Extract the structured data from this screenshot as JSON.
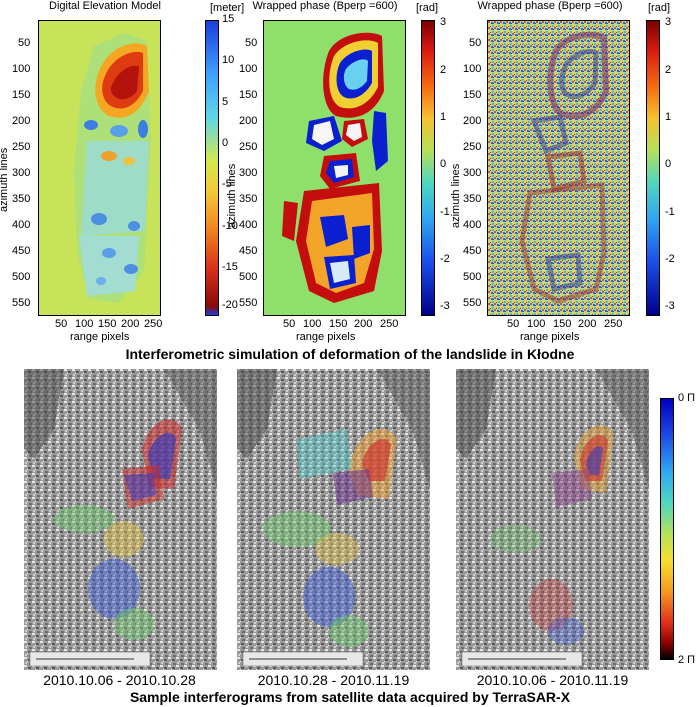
{
  "top_section": {
    "caption": "Interferometric simulation of deformation of the landslide in Kłodne",
    "panels": [
      {
        "title": "Digital Elevation Model",
        "colorbar_unit": "[meter]",
        "colorbar_ticks": [
          "15",
          "10",
          "5",
          "0",
          "-5",
          "-10",
          "-15",
          "-20"
        ],
        "xlabel": "range pixels",
        "ylabel": "azimuth lines",
        "x_ticks": [
          "50",
          "100",
          "150",
          "200",
          "250"
        ],
        "y_ticks": [
          "50",
          "100",
          "150",
          "200",
          "250",
          "300",
          "350",
          "400",
          "450",
          "500",
          "550"
        ],
        "colors": {
          "background": "#c6e35a",
          "high": "#2f6fd8",
          "low": "#b4120c"
        }
      },
      {
        "title": "Wrapped phase (Bperp =600)",
        "colorbar_unit": "[rad]",
        "colorbar_ticks": [
          "3",
          "2",
          "1",
          "0",
          "-1",
          "-2",
          "-3"
        ],
        "xlabel": "range pixels",
        "ylabel": "azimuth lines",
        "x_ticks": [
          "50",
          "100",
          "150",
          "200",
          "250"
        ],
        "y_ticks": [
          "50",
          "100",
          "150",
          "200",
          "250",
          "300",
          "350",
          "400",
          "450",
          "500",
          "550"
        ],
        "colors": {
          "background": "#8fe06a",
          "blue": "#0a1fd0",
          "red": "#c40d0d"
        }
      },
      {
        "title": "Wrapped phase (Bperp =600)",
        "colorbar_unit": "[rad]",
        "colorbar_ticks": [
          "3",
          "2",
          "1",
          "0",
          "-1",
          "-2",
          "-3"
        ],
        "xlabel": "range pixels",
        "ylabel": "azimuth lines",
        "x_ticks": [
          "50",
          "100",
          "150",
          "200",
          "250"
        ],
        "y_ticks": [
          "50",
          "100",
          "150",
          "200",
          "250",
          "300",
          "350",
          "400",
          "450",
          "500",
          "550"
        ],
        "colors": {
          "background": "noise"
        }
      }
    ]
  },
  "bottom_section": {
    "caption": "Sample interferograms from satellite data acquired by TerraSAR-X",
    "interferograms": [
      {
        "date_range": "2010.10.06 - 2010.10.28"
      },
      {
        "date_range": "2010.10.28 - 2010.11.19"
      },
      {
        "date_range": "2010.10.06 - 2010.11.19"
      }
    ],
    "phase_colorbar": {
      "top_label": "0 Π",
      "bottom_label": "2 Π"
    }
  }
}
